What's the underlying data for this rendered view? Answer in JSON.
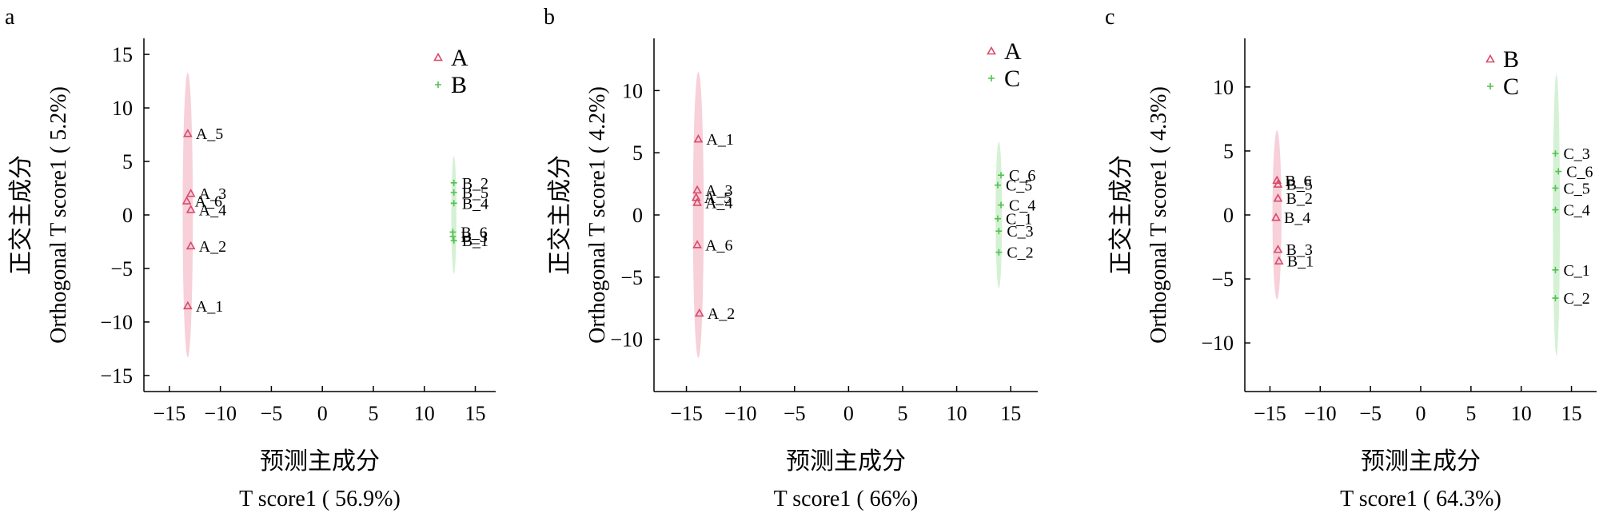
{
  "chart_data": [
    {
      "panel_label": "a",
      "type": "scatter",
      "xlabel": [
        "预测主成分",
        "T score1 ( 56.9%)"
      ],
      "ylabel": [
        "正交主成分",
        "Orthogonal T score1 ( 5.2%)"
      ],
      "xlim": [
        -17.5,
        17
      ],
      "ylim": [
        -16.5,
        16.5
      ],
      "xticks": [
        -15,
        -10,
        -5,
        0,
        5,
        10,
        15
      ],
      "yticks": [
        -15,
        -10,
        -5,
        0,
        5,
        10,
        15
      ],
      "series": [
        {
          "name": "A",
          "marker": "triangle",
          "color": "#d94a6a",
          "ellipse_color": "#f6c8d2",
          "ellipse": {
            "cx": -13.2,
            "cy": 0,
            "rx": 0.5,
            "ry": 13.3
          },
          "points": [
            {
              "label": "A_5",
              "x": -13.2,
              "y": 7.6
            },
            {
              "label": "A_3",
              "x": -12.9,
              "y": 2.0
            },
            {
              "label": "A_6",
              "x": -13.3,
              "y": 1.3
            },
            {
              "label": "A_4",
              "x": -12.9,
              "y": 0.5
            },
            {
              "label": "A_2",
              "x": -12.9,
              "y": -2.9
            },
            {
              "label": "A_1",
              "x": -13.2,
              "y": -8.5
            }
          ]
        },
        {
          "name": "B",
          "marker": "plus",
          "color": "#52c24f",
          "ellipse_color": "#cdefcc",
          "ellipse": {
            "cx": 12.9,
            "cy": 0,
            "rx": 0.25,
            "ry": 5.5
          },
          "points": [
            {
              "label": "B_2",
              "x": 12.9,
              "y": 3.0
            },
            {
              "label": "B_5",
              "x": 12.9,
              "y": 2.1
            },
            {
              "label": "B_4",
              "x": 12.9,
              "y": 1.1
            },
            {
              "label": "B_6",
              "x": 12.8,
              "y": -1.6
            },
            {
              "label": "B_1",
              "x": 12.9,
              "y": -2.4
            },
            {
              "label": "B_3",
              "x": 12.8,
              "y": -2.0
            }
          ]
        }
      ],
      "legend": [
        "A",
        "B"
      ]
    },
    {
      "panel_label": "b",
      "type": "scatter",
      "xlabel": [
        "预测主成分",
        "T score1 ( 66%)"
      ],
      "ylabel": [
        "正交主成分",
        "Orthogonal T score1 ( 4.2%)"
      ],
      "xlim": [
        -18,
        17.5
      ],
      "ylim": [
        -14.2,
        14.2
      ],
      "xticks": [
        -15,
        -10,
        -5,
        0,
        5,
        10,
        15
      ],
      "yticks": [
        -10,
        -5,
        0,
        5,
        10
      ],
      "series": [
        {
          "name": "A",
          "marker": "triangle",
          "color": "#d94a6a",
          "ellipse_color": "#f6c8d2",
          "ellipse": {
            "cx": -13.9,
            "cy": 0,
            "rx": 0.5,
            "ry": 11.5
          },
          "points": [
            {
              "label": "A_1",
              "x": -13.9,
              "y": 6.1
            },
            {
              "label": "A_3",
              "x": -14.0,
              "y": 2.0
            },
            {
              "label": "A_5",
              "x": -14.1,
              "y": 1.4
            },
            {
              "label": "A_4",
              "x": -14.0,
              "y": 1.0
            },
            {
              "label": "A_6",
              "x": -14.0,
              "y": -2.4
            },
            {
              "label": "A_2",
              "x": -13.8,
              "y": -7.9
            }
          ]
        },
        {
          "name": "C",
          "marker": "plus",
          "color": "#52c24f",
          "ellipse_color": "#cdefcc",
          "ellipse": {
            "cx": 13.9,
            "cy": 0,
            "rx": 0.3,
            "ry": 5.9
          },
          "points": [
            {
              "label": "C_6",
              "x": 14.1,
              "y": 3.2
            },
            {
              "label": "C_5",
              "x": 13.8,
              "y": 2.4
            },
            {
              "label": "C_4",
              "x": 14.1,
              "y": 0.8
            },
            {
              "label": "C_1",
              "x": 13.8,
              "y": -0.3
            },
            {
              "label": "C_3",
              "x": 13.9,
              "y": -1.3
            },
            {
              "label": "C_2",
              "x": 13.9,
              "y": -3.0
            }
          ]
        }
      ],
      "legend": [
        "A",
        "C"
      ]
    },
    {
      "panel_label": "c",
      "type": "scatter",
      "xlabel": [
        "预测主成分",
        "T score1 ( 64.3%)"
      ],
      "ylabel": [
        "正交主成分",
        "Orthogonal T score1 ( 4.3%)"
      ],
      "xlim": [
        -17.5,
        17.5
      ],
      "ylim": [
        -13.8,
        13.8
      ],
      "xticks": [
        -15,
        -10,
        -5,
        0,
        5,
        10,
        15
      ],
      "yticks": [
        -10,
        -5,
        0,
        5,
        10
      ],
      "series": [
        {
          "name": "B",
          "marker": "triangle",
          "color": "#d94a6a",
          "ellipse_color": "#f6c8d2",
          "ellipse": {
            "cx": -14.3,
            "cy": 0,
            "rx": 0.45,
            "ry": 6.6
          },
          "points": [
            {
              "label": "B_6",
              "x": -14.3,
              "y": 2.7
            },
            {
              "label": "B_5",
              "x": -14.2,
              "y": 2.4
            },
            {
              "label": "B_2",
              "x": -14.2,
              "y": 1.3
            },
            {
              "label": "B_4",
              "x": -14.4,
              "y": -0.2
            },
            {
              "label": "B_3",
              "x": -14.2,
              "y": -2.7
            },
            {
              "label": "B_1",
              "x": -14.1,
              "y": -3.6
            }
          ]
        },
        {
          "name": "C",
          "marker": "plus",
          "color": "#52c24f",
          "ellipse_color": "#cdefcc",
          "ellipse": {
            "cx": 13.5,
            "cy": 0,
            "rx": 0.35,
            "ry": 11.0
          },
          "points": [
            {
              "label": "C_3",
              "x": 13.4,
              "y": 4.8
            },
            {
              "label": "C_6",
              "x": 13.7,
              "y": 3.4
            },
            {
              "label": "C_5",
              "x": 13.4,
              "y": 2.1
            },
            {
              "label": "C_4",
              "x": 13.4,
              "y": 0.4
            },
            {
              "label": "C_1",
              "x": 13.4,
              "y": -4.3
            },
            {
              "label": "C_2",
              "x": 13.4,
              "y": -6.5
            }
          ]
        }
      ],
      "legend": [
        "B",
        "C"
      ]
    }
  ]
}
